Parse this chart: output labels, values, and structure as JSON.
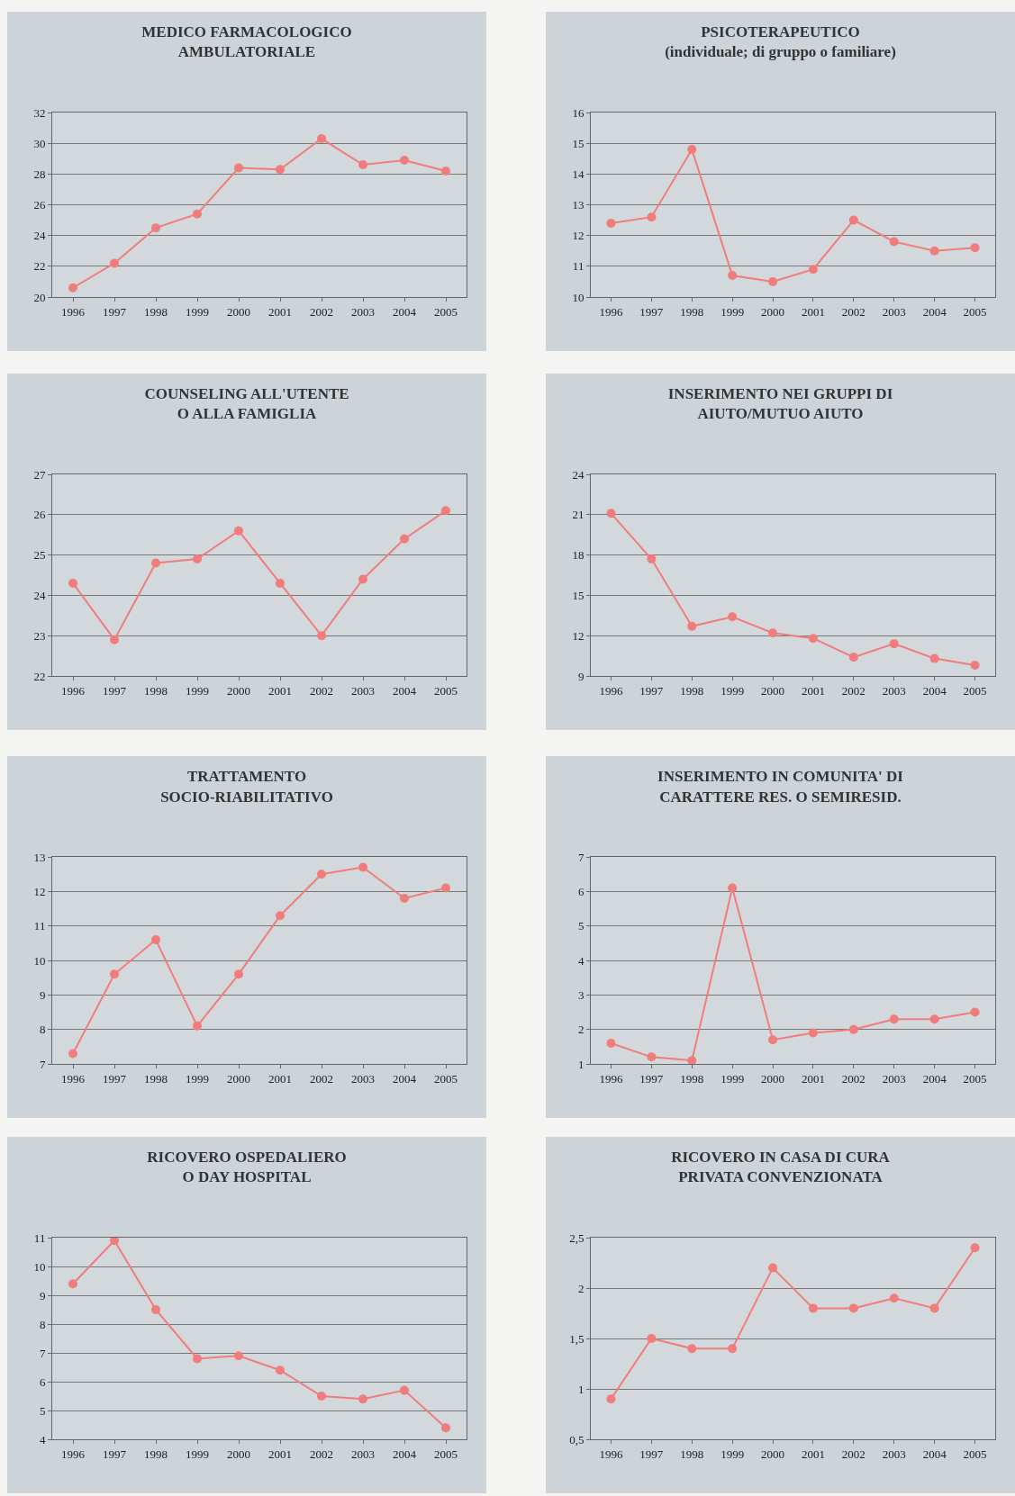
{
  "chart_data": [
    {
      "type": "line",
      "title": "MEDICO FARMACOLOGICO\nAMBULATORIALE",
      "categories": [
        "1996",
        "1997",
        "1998",
        "1999",
        "2000",
        "2001",
        "2002",
        "2003",
        "2004",
        "2005"
      ],
      "values": [
        20.6,
        22.2,
        24.5,
        25.4,
        28.4,
        28.3,
        30.3,
        28.6,
        28.9,
        28.2
      ],
      "color": "#f07c7c",
      "ylim": [
        20,
        32
      ],
      "yticks": [
        20,
        22,
        24,
        26,
        28,
        30,
        32
      ],
      "grid": "y",
      "marker": "circle",
      "legend": false
    },
    {
      "type": "line",
      "title": "PSICOTERAPEUTICO\n(individuale; di gruppo o familiare)",
      "categories": [
        "1996",
        "1997",
        "1998",
        "1999",
        "2000",
        "2001",
        "2002",
        "2003",
        "2004",
        "2005"
      ],
      "values": [
        12.4,
        12.6,
        14.8,
        10.7,
        10.5,
        10.9,
        12.5,
        11.8,
        11.5,
        11.6
      ],
      "color": "#f07c7c",
      "ylim": [
        10,
        16
      ],
      "yticks": [
        10,
        11,
        12,
        13,
        14,
        15,
        16
      ],
      "grid": "y",
      "marker": "circle",
      "legend": false
    },
    {
      "type": "line",
      "title": "COUNSELING ALL'UTENTE\nO ALLA FAMIGLIA",
      "categories": [
        "1996",
        "1997",
        "1998",
        "1999",
        "2000",
        "2001",
        "2002",
        "2003",
        "2004",
        "2005"
      ],
      "values": [
        24.3,
        22.9,
        24.8,
        24.9,
        25.6,
        24.3,
        23.0,
        24.4,
        25.4,
        26.1
      ],
      "color": "#f07c7c",
      "ylim": [
        22,
        27
      ],
      "yticks": [
        22,
        23,
        24,
        25,
        26,
        27
      ],
      "grid": "y",
      "marker": "circle",
      "legend": false
    },
    {
      "type": "line",
      "title": "INSERIMENTO NEI GRUPPI DI\nAIUTO/MUTUO AIUTO",
      "categories": [
        "1996",
        "1997",
        "1998",
        "1999",
        "2000",
        "2001",
        "2002",
        "2003",
        "2004",
        "2005"
      ],
      "values": [
        21.1,
        17.7,
        12.7,
        13.4,
        12.2,
        11.8,
        10.4,
        11.4,
        10.3,
        9.8
      ],
      "color": "#f07c7c",
      "ylim": [
        9,
        24
      ],
      "yticks": [
        9,
        12,
        15,
        18,
        21,
        24
      ],
      "grid": "y",
      "marker": "circle",
      "legend": false
    },
    {
      "type": "line",
      "title": "TRATTAMENTO\nSOCIO-RIABILITATIVO",
      "categories": [
        "1996",
        "1997",
        "1998",
        "1999",
        "2000",
        "2001",
        "2002",
        "2003",
        "2004",
        "2005"
      ],
      "values": [
        7.3,
        9.6,
        10.6,
        8.1,
        9.6,
        11.3,
        12.5,
        12.7,
        11.8,
        12.1
      ],
      "color": "#f07c7c",
      "ylim": [
        7,
        13
      ],
      "yticks": [
        7,
        8,
        9,
        10,
        11,
        12,
        13
      ],
      "grid": "y",
      "marker": "circle",
      "legend": false
    },
    {
      "type": "line",
      "title": "INSERIMENTO IN COMUNITA' DI\nCARATTERE RES. O SEMIRESID.",
      "categories": [
        "1996",
        "1997",
        "1998",
        "1999",
        "2000",
        "2001",
        "2002",
        "2003",
        "2004",
        "2005"
      ],
      "values": [
        1.6,
        1.2,
        1.1,
        6.1,
        1.7,
        1.9,
        2.0,
        2.3,
        2.3,
        2.5
      ],
      "color": "#f07c7c",
      "ylim": [
        1,
        7
      ],
      "yticks": [
        1,
        2,
        3,
        4,
        5,
        6,
        7
      ],
      "grid": "y",
      "marker": "circle",
      "legend": false
    },
    {
      "type": "line",
      "title": "RICOVERO OSPEDALIERO\nO DAY HOSPITAL",
      "categories": [
        "1996",
        "1997",
        "1998",
        "1999",
        "2000",
        "2001",
        "2002",
        "2003",
        "2004",
        "2005"
      ],
      "values": [
        9.4,
        10.9,
        8.5,
        6.8,
        6.9,
        6.4,
        5.5,
        5.4,
        5.7,
        4.4
      ],
      "color": "#f07c7c",
      "ylim": [
        4,
        11
      ],
      "yticks": [
        4,
        5,
        6,
        7,
        8,
        9,
        10,
        11
      ],
      "grid": "y",
      "marker": "circle",
      "legend": false
    },
    {
      "type": "line",
      "title": "RICOVERO IN CASA DI CURA\nPRIVATA CONVENZIONATA",
      "categories": [
        "1996",
        "1997",
        "1998",
        "1999",
        "2000",
        "2001",
        "2002",
        "2003",
        "2004",
        "2005"
      ],
      "values": [
        0.9,
        1.5,
        1.4,
        1.4,
        2.2,
        1.8,
        1.8,
        1.9,
        1.8,
        2.4
      ],
      "color": "#f07c7c",
      "ylim": [
        0.5,
        2.5
      ],
      "yticks": [
        {
          "value": 0.5,
          "label": "0,5"
        },
        1,
        {
          "value": 1.5,
          "label": "1,5"
        },
        2,
        {
          "value": 2.5,
          "label": "2,5"
        }
      ],
      "grid": "y",
      "marker": "circle",
      "legend": false
    }
  ]
}
